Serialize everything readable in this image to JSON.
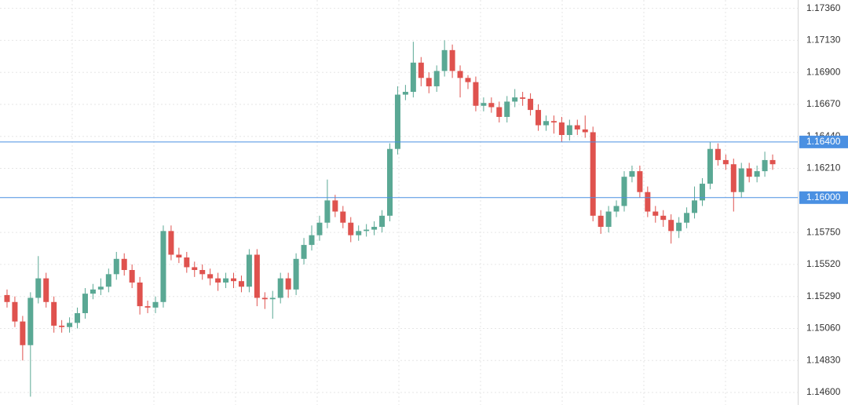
{
  "chart_data": {
    "type": "candlestick",
    "up_color": "#5aa894",
    "down_color": "#df524e",
    "grid": true,
    "ylim": [
      1.1451,
      1.1742
    ],
    "yticks": [
      {
        "value": 1.1736,
        "label": "1.17360"
      },
      {
        "value": 1.1713,
        "label": "1.17130"
      },
      {
        "value": 1.169,
        "label": "1.16900"
      },
      {
        "value": 1.1667,
        "label": "1.16670"
      },
      {
        "value": 1.1644,
        "label": "1.16440"
      },
      {
        "value": 1.1621,
        "label": "1.16210"
      },
      {
        "value": 1.1575,
        "label": "1.15750"
      },
      {
        "value": 1.1552,
        "label": "1.15520"
      },
      {
        "value": 1.1529,
        "label": "1.15290"
      },
      {
        "value": 1.1506,
        "label": "1.15060"
      },
      {
        "value": 1.1483,
        "label": "1.14830"
      },
      {
        "value": 1.146,
        "label": "1.14600"
      }
    ],
    "hlines": [
      {
        "value": 1.164,
        "label": "1.16400"
      },
      {
        "value": 1.16,
        "label": "1.16000"
      }
    ],
    "hline_color": "#4a90e2",
    "open": [
      1.153,
      1.1525,
      1.1511,
      1.1494,
      1.1528,
      1.1542,
      1.1525,
      1.1508,
      1.1507,
      1.151,
      1.1517,
      1.1531,
      1.1534,
      1.1536,
      1.1545,
      1.1556,
      1.1548,
      1.1539,
      1.1522,
      1.1521,
      1.1525,
      1.1576,
      1.1559,
      1.1557,
      1.155,
      1.1548,
      1.1545,
      1.1542,
      1.1539,
      1.1542,
      1.154,
      1.1536,
      1.1559,
      1.1528,
      1.1527,
      1.1528,
      1.1542,
      1.1534,
      1.1556,
      1.1566,
      1.1573,
      1.1582,
      1.1598,
      1.159,
      1.1582,
      1.1573,
      1.1576,
      1.1577,
      1.1579,
      1.1587,
      1.1635,
      1.1674,
      1.1676,
      1.1697,
      1.1686,
      1.168,
      1.1691,
      1.1706,
      1.1691,
      1.1686,
      1.1683,
      1.1666,
      1.1668,
      1.1665,
      1.1658,
      1.1669,
      1.1672,
      1.1671,
      1.1663,
      1.1652,
      1.1655,
      1.1654,
      1.1645,
      1.1652,
      1.1649,
      1.1647,
      1.1587,
      1.1579,
      1.159,
      1.1594,
      1.1615,
      1.1619,
      1.1604,
      1.159,
      1.1587,
      1.1584,
      1.1576,
      1.1582,
      1.1589,
      1.1598,
      1.161,
      1.1635,
      1.1627,
      1.1624,
      1.1604,
      1.1621,
      1.1615,
      1.1619,
      1.1627
    ],
    "high": [
      1.1534,
      1.1529,
      1.1515,
      1.1532,
      1.1558,
      1.1546,
      1.1529,
      1.1512,
      1.1514,
      1.1521,
      1.1535,
      1.1538,
      1.1542,
      1.1549,
      1.1561,
      1.156,
      1.1552,
      1.1543,
      1.1526,
      1.1529,
      1.158,
      1.158,
      1.1564,
      1.1561,
      1.1554,
      1.1552,
      1.1549,
      1.1546,
      1.1546,
      1.1546,
      1.1544,
      1.1563,
      1.1563,
      1.1532,
      1.1533,
      1.1546,
      1.1546,
      1.156,
      1.1571,
      1.158,
      1.1587,
      1.1613,
      1.1602,
      1.1594,
      1.1586,
      1.158,
      1.1581,
      1.1583,
      1.1591,
      1.1639,
      1.168,
      1.1681,
      1.1712,
      1.1701,
      1.169,
      1.1695,
      1.1713,
      1.171,
      1.1695,
      1.1688,
      1.1687,
      1.1672,
      1.1672,
      1.1669,
      1.1673,
      1.1678,
      1.1676,
      1.1675,
      1.1667,
      1.1659,
      1.1659,
      1.1658,
      1.1656,
      1.1656,
      1.1659,
      1.1651,
      1.1591,
      1.1594,
      1.1598,
      1.1619,
      1.1623,
      1.1623,
      1.1608,
      1.1594,
      1.1591,
      1.1588,
      1.1586,
      1.1593,
      1.1608,
      1.1614,
      1.164,
      1.1639,
      1.1631,
      1.1628,
      1.1625,
      1.1625,
      1.1623,
      1.1633,
      1.1631
    ],
    "low": [
      1.1521,
      1.1507,
      1.1483,
      1.1457,
      1.1524,
      1.1521,
      1.1503,
      1.1503,
      1.1503,
      1.1506,
      1.1513,
      1.1527,
      1.153,
      1.1532,
      1.1541,
      1.1544,
      1.1535,
      1.1516,
      1.1517,
      1.1517,
      1.1521,
      1.1555,
      1.1553,
      1.1546,
      1.1543,
      1.1541,
      1.1537,
      1.1533,
      1.1535,
      1.1535,
      1.1532,
      1.1532,
      1.1522,
      1.152,
      1.1513,
      1.1524,
      1.1528,
      1.153,
      1.1552,
      1.1562,
      1.1569,
      1.1578,
      1.1586,
      1.1578,
      1.1568,
      1.1569,
      1.1572,
      1.1573,
      1.1575,
      1.1583,
      1.1631,
      1.167,
      1.1672,
      1.168,
      1.1675,
      1.1676,
      1.1687,
      1.1686,
      1.1672,
      1.1678,
      1.1662,
      1.1662,
      1.1661,
      1.1654,
      1.1654,
      1.1665,
      1.1666,
      1.1659,
      1.1648,
      1.1648,
      1.1646,
      1.164,
      1.1641,
      1.1645,
      1.1643,
      1.1583,
      1.1574,
      1.1575,
      1.1586,
      1.159,
      1.1611,
      1.16,
      1.1586,
      1.1582,
      1.1579,
      1.1567,
      1.1571,
      1.1578,
      1.1585,
      1.1594,
      1.1606,
      1.1623,
      1.162,
      1.159,
      1.16,
      1.1611,
      1.1611,
      1.1615,
      1.162
    ],
    "close": [
      1.1525,
      1.1511,
      1.1494,
      1.1528,
      1.1542,
      1.1525,
      1.1508,
      1.1507,
      1.151,
      1.1517,
      1.1531,
      1.1534,
      1.1536,
      1.1545,
      1.1556,
      1.1548,
      1.1539,
      1.1522,
      1.1521,
      1.1525,
      1.1576,
      1.1559,
      1.1557,
      1.155,
      1.1548,
      1.1545,
      1.1542,
      1.1539,
      1.1542,
      1.154,
      1.1536,
      1.1559,
      1.1528,
      1.1527,
      1.1528,
      1.1542,
      1.1534,
      1.1556,
      1.1566,
      1.1573,
      1.1582,
      1.1598,
      1.159,
      1.1582,
      1.1573,
      1.1576,
      1.1577,
      1.1579,
      1.1587,
      1.1635,
      1.1674,
      1.1676,
      1.1697,
      1.1686,
      1.168,
      1.1691,
      1.1706,
      1.1691,
      1.1686,
      1.1683,
      1.1666,
      1.1668,
      1.1665,
      1.1658,
      1.1669,
      1.1672,
      1.1671,
      1.1663,
      1.1652,
      1.1655,
      1.1654,
      1.1645,
      1.1652,
      1.1649,
      1.1647,
      1.1587,
      1.1579,
      1.159,
      1.1594,
      1.1615,
      1.1619,
      1.1604,
      1.159,
      1.1587,
      1.1584,
      1.1576,
      1.1582,
      1.1589,
      1.1598,
      1.161,
      1.1635,
      1.1627,
      1.1624,
      1.1604,
      1.1621,
      1.1615,
      1.1619,
      1.1627,
      1.1624
    ]
  }
}
